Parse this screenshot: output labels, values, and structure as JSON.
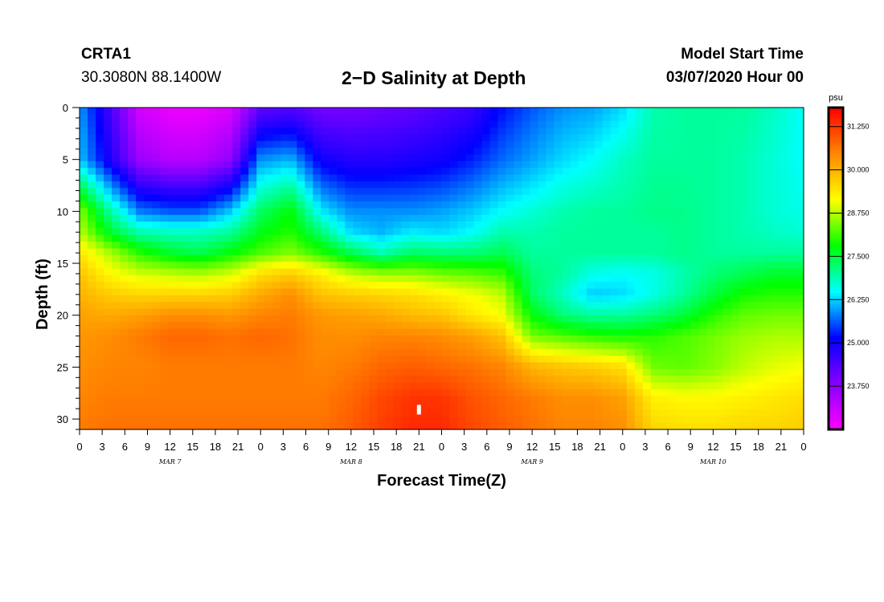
{
  "header": {
    "station": "CRTA1",
    "coords": "30.3080N 88.1400W",
    "title": "2−D Salinity at Depth",
    "model_start_label": "Model Start Time",
    "model_start_value": "03/07/2020 Hour 00"
  },
  "chart_data": {
    "type": "heatmap",
    "title": "2−D Salinity at Depth",
    "xlabel": "Forecast Time(Z)",
    "ylabel": "Depth (ft)",
    "x_tick_labels": [
      "0",
      "3",
      "6",
      "9",
      "12",
      "15",
      "18",
      "21",
      "0",
      "3",
      "6",
      "9",
      "12",
      "15",
      "18",
      "21",
      "0",
      "3",
      "6",
      "9",
      "12",
      "15",
      "18",
      "21",
      "0",
      "3",
      "6",
      "9",
      "12",
      "15",
      "18",
      "21",
      "0"
    ],
    "x_range_hours": [
      0,
      96
    ],
    "day_labels": [
      {
        "text": "MAR 7",
        "hour": 12
      },
      {
        "text": "MAR 8",
        "hour": 36
      },
      {
        "text": "MAR 9",
        "hour": 60
      },
      {
        "text": "MAR 10",
        "hour": 84
      }
    ],
    "y_tick_labels": [
      "0",
      "5",
      "10",
      "15",
      "20",
      "25",
      "30"
    ],
    "y_range": [
      0,
      31
    ],
    "y_inverted": true,
    "colorbar": {
      "unit": "psu",
      "tick_labels": [
        "31.250",
        "30.000",
        "28.750",
        "27.500",
        "26.250",
        "25.000",
        "23.750"
      ],
      "tick_values": [
        31.25,
        30.0,
        28.75,
        27.5,
        26.25,
        25.0,
        23.75
      ],
      "range": [
        22.5,
        31.8
      ],
      "colors": [
        "#ff00ff",
        "#8800ff",
        "#0000ff",
        "#00ffff",
        "#00ff00",
        "#ffff00",
        "#ff8800",
        "#ff0000"
      ]
    },
    "grid": false,
    "salinity_grid": {
      "times_hours": [
        0,
        4,
        8,
        12,
        16,
        20,
        24,
        28,
        32,
        36,
        40,
        44,
        48,
        52,
        56,
        60,
        64,
        68,
        72,
        76,
        80,
        84,
        88,
        92,
        96
      ],
      "depths_ft": [
        0,
        5,
        10,
        12,
        14,
        16,
        18,
        20,
        22,
        25,
        28,
        31
      ],
      "values": [
        [
          26.0,
          24.5,
          23.0,
          22.7,
          22.7,
          22.9,
          24.2,
          24.3,
          24.0,
          24.0,
          24.1,
          24.2,
          24.4,
          24.6,
          25.2,
          25.6,
          25.9,
          26.0,
          26.3,
          26.9,
          27.0,
          27.0,
          27.0,
          26.8,
          26.5
        ],
        [
          26.2,
          24.9,
          23.6,
          23.3,
          23.3,
          23.7,
          25.9,
          26.1,
          25.0,
          24.8,
          24.8,
          24.9,
          25.0,
          25.3,
          25.7,
          26.0,
          26.3,
          26.5,
          26.8,
          27.0,
          27.0,
          27.0,
          26.9,
          26.7,
          26.5
        ],
        [
          28.5,
          27.0,
          25.8,
          25.6,
          25.6,
          26.2,
          27.3,
          27.8,
          26.4,
          25.9,
          25.9,
          25.9,
          26.0,
          26.2,
          26.5,
          26.7,
          26.9,
          27.0,
          27.0,
          27.1,
          27.1,
          27.0,
          26.9,
          26.7,
          26.6
        ],
        [
          28.8,
          27.6,
          26.9,
          26.8,
          26.8,
          27.0,
          27.7,
          28.0,
          27.2,
          26.3,
          26.1,
          26.4,
          26.3,
          26.5,
          26.9,
          26.9,
          27.0,
          27.0,
          27.0,
          27.0,
          27.1,
          27.0,
          26.9,
          26.8,
          26.7
        ],
        [
          29.4,
          28.7,
          28.0,
          27.6,
          27.4,
          27.8,
          28.2,
          28.5,
          28.0,
          27.4,
          26.9,
          27.3,
          27.2,
          27.2,
          27.4,
          27.0,
          27.0,
          27.0,
          27.0,
          27.0,
          27.1,
          27.0,
          27.0,
          27.0,
          27.0
        ],
        [
          29.8,
          29.2,
          28.9,
          28.8,
          28.7,
          28.9,
          29.5,
          29.7,
          29.3,
          28.8,
          28.6,
          28.6,
          28.4,
          28.3,
          28.1,
          27.2,
          27.0,
          26.6,
          26.5,
          26.6,
          26.9,
          27.2,
          27.4,
          27.6,
          27.6
        ],
        [
          30.0,
          29.7,
          29.6,
          29.6,
          29.6,
          29.7,
          30.1,
          30.4,
          29.8,
          29.7,
          29.6,
          29.5,
          29.3,
          29.1,
          28.8,
          27.3,
          26.8,
          26.2,
          26.3,
          26.6,
          27.0,
          27.5,
          27.9,
          28.0,
          28.0
        ],
        [
          30.2,
          30.1,
          30.2,
          30.4,
          30.4,
          30.3,
          30.5,
          30.6,
          30.3,
          30.2,
          30.1,
          29.9,
          29.8,
          29.4,
          29.1,
          27.8,
          27.2,
          27.0,
          27.0,
          27.2,
          27.5,
          28.0,
          28.3,
          28.4,
          28.4
        ],
        [
          30.3,
          30.4,
          30.6,
          30.8,
          30.8,
          30.7,
          30.8,
          30.7,
          30.4,
          30.4,
          30.5,
          30.5,
          30.4,
          30.2,
          29.8,
          28.4,
          28.2,
          28.0,
          27.9,
          28.0,
          28.2,
          28.4,
          28.6,
          28.7,
          28.7
        ],
        [
          30.4,
          30.5,
          30.5,
          30.6,
          30.6,
          30.6,
          30.6,
          30.6,
          30.5,
          30.6,
          30.8,
          30.9,
          30.8,
          30.7,
          30.5,
          30.0,
          29.8,
          29.7,
          29.5,
          28.4,
          28.3,
          28.5,
          28.8,
          29.0,
          29.1
        ],
        [
          30.5,
          30.6,
          30.6,
          30.6,
          30.6,
          30.6,
          30.6,
          30.6,
          30.6,
          30.8,
          31.1,
          31.3,
          31.3,
          31.0,
          30.8,
          30.6,
          30.4,
          30.4,
          30.2,
          29.3,
          29.2,
          29.2,
          29.3,
          29.4,
          29.5
        ],
        [
          30.6,
          30.7,
          30.7,
          30.7,
          30.7,
          30.7,
          30.7,
          30.7,
          30.7,
          30.9,
          31.2,
          31.4,
          31.4,
          31.1,
          30.9,
          30.7,
          30.5,
          30.5,
          30.4,
          29.6,
          29.5,
          29.5,
          29.6,
          29.6,
          29.7
        ]
      ]
    }
  }
}
